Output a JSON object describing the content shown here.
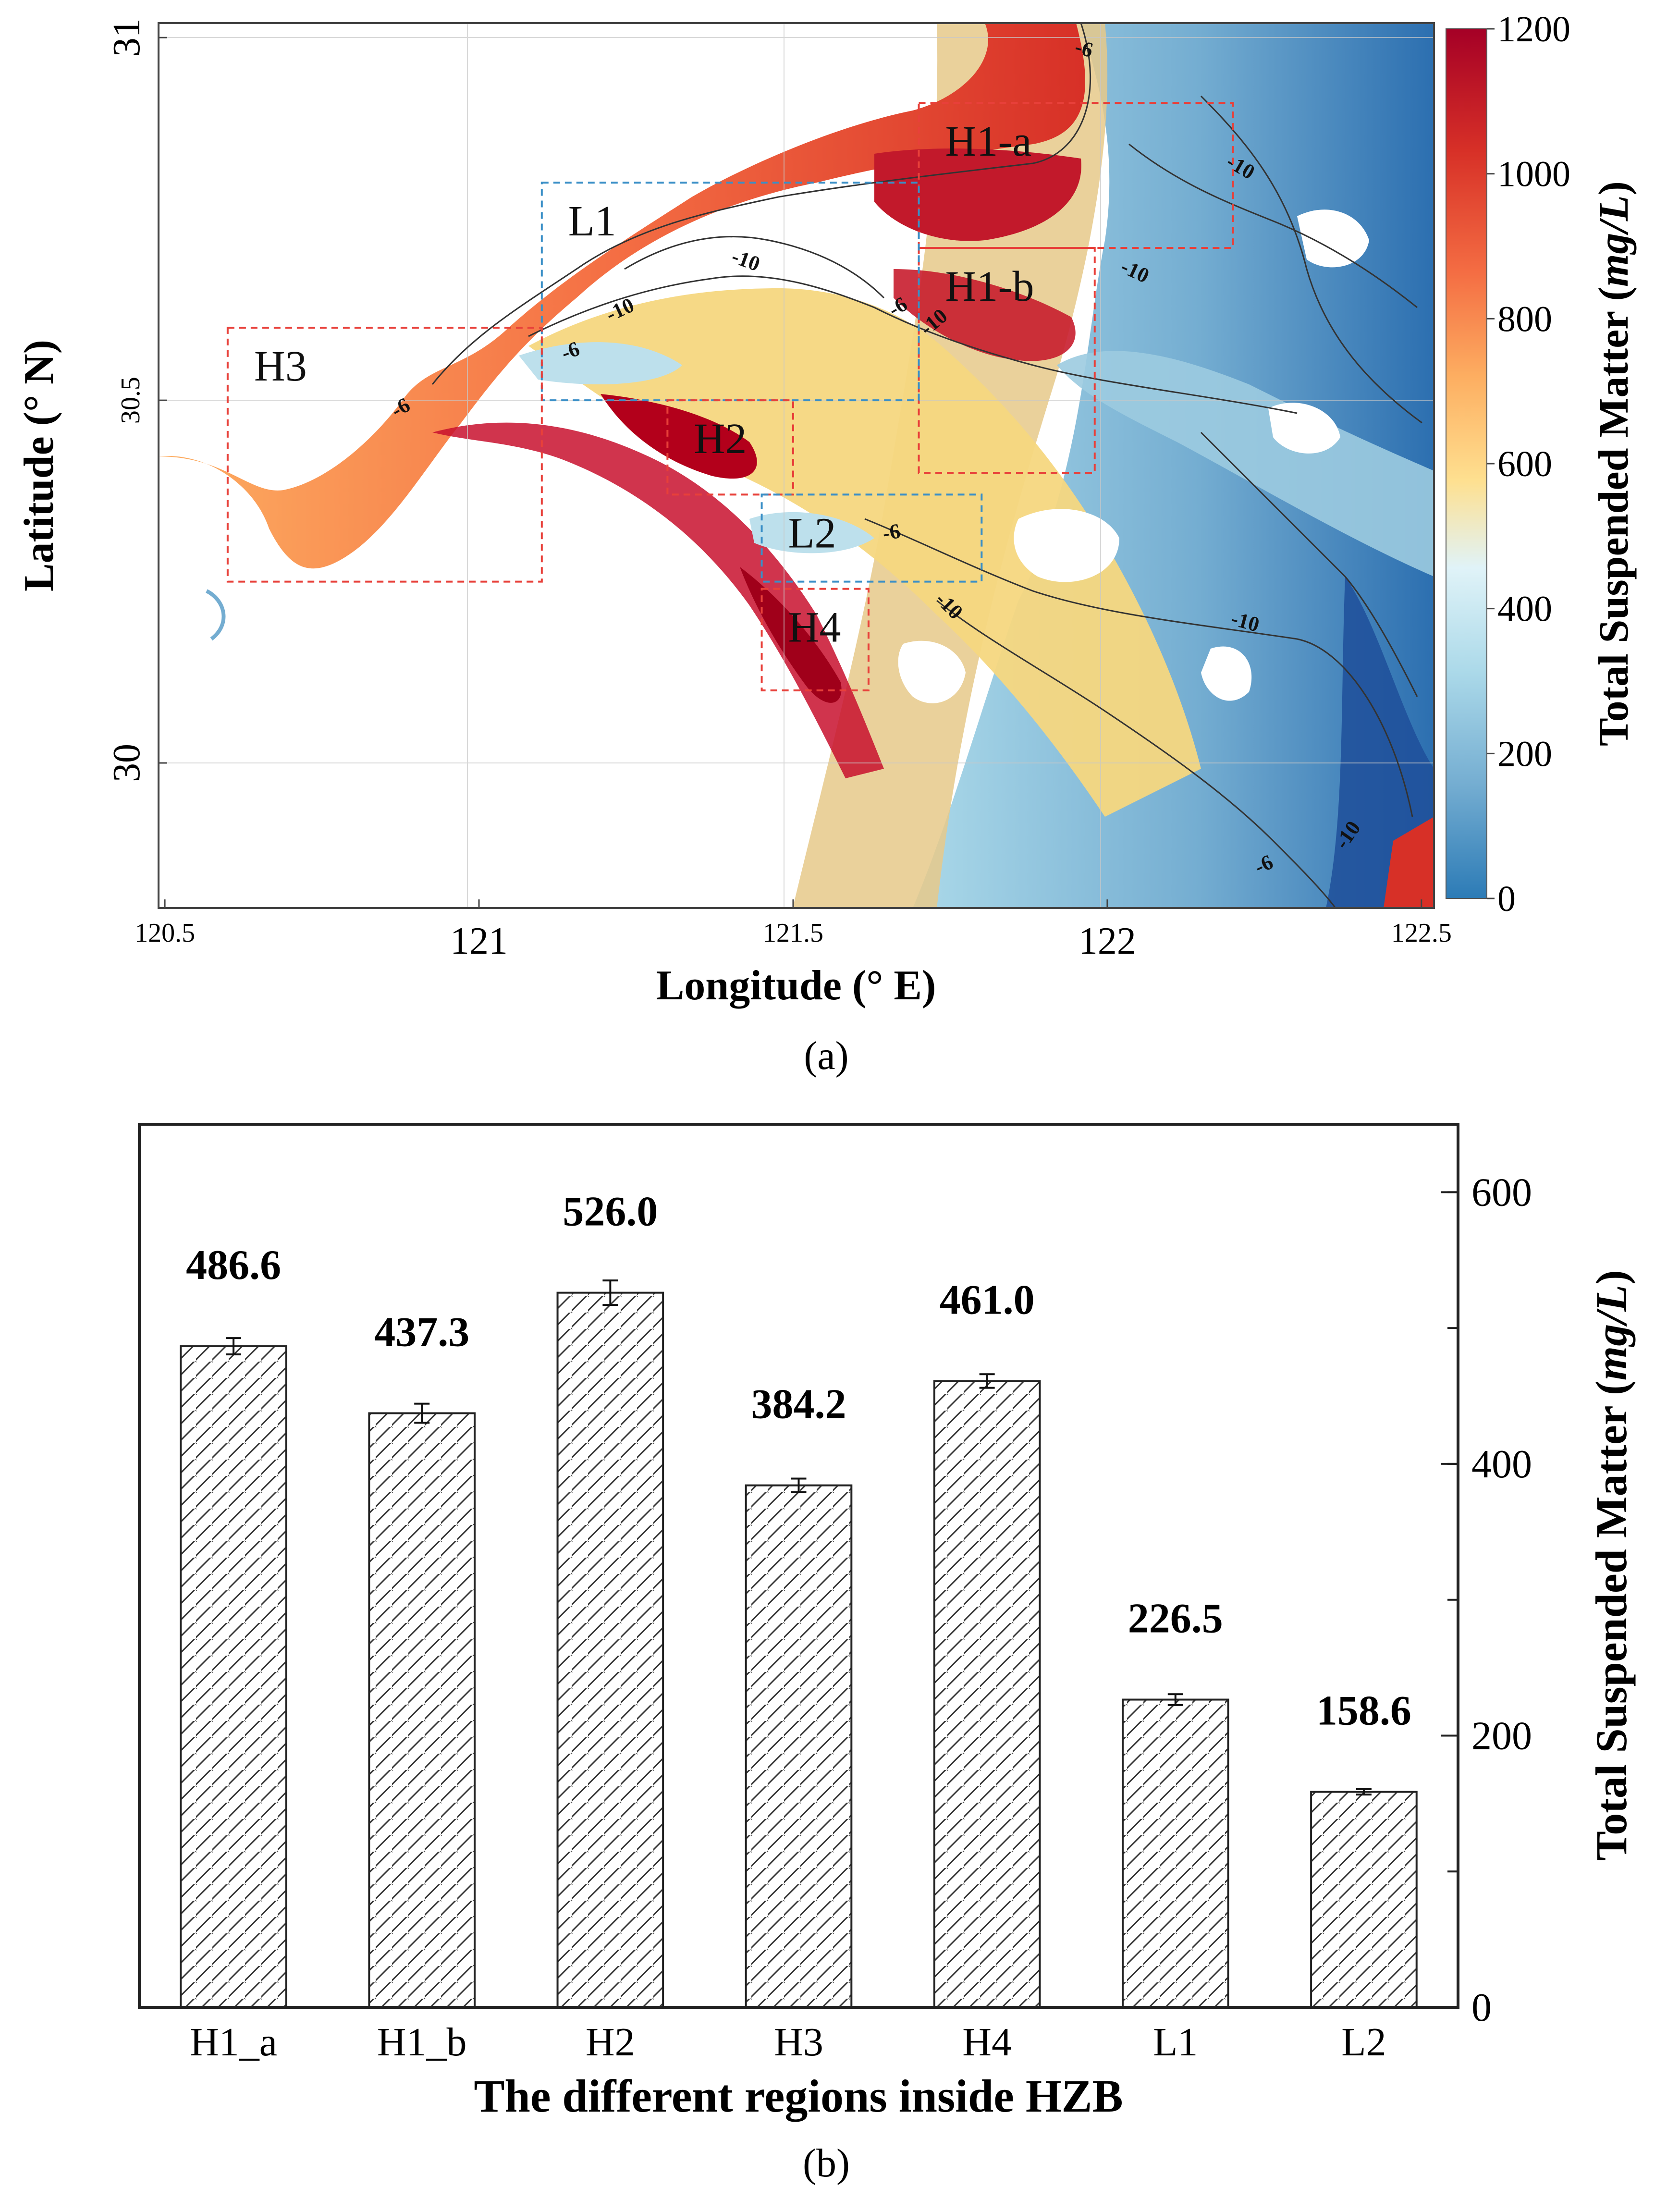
{
  "map_panel": {
    "label": "(a)",
    "xlabel": "Longitude (° E)",
    "ylabel": "Latitude (° N)",
    "x_ticks": [
      "120.5",
      "121",
      "121.5",
      "122",
      "122.5"
    ],
    "x_tick_values": [
      120.5,
      121,
      121.5,
      122,
      122.5
    ],
    "y_ticks": [
      "31",
      "30.5",
      "30"
    ],
    "y_tick_values": [
      31,
      30.5,
      30
    ],
    "xlim": [
      120.49,
      122.52
    ],
    "ylim": [
      29.8,
      31.02
    ],
    "colorbar": {
      "label": "Total Suspended Matter (mg/L)",
      "label_plain": "Total Suspended Matter (",
      "label_unit": "mg/L",
      "label_close": ")",
      "ticks": [
        "1200",
        "1000",
        "800",
        "600",
        "400",
        "200",
        "0"
      ],
      "range": [
        0,
        1200
      ],
      "colors": [
        "#2c7bb6",
        "#74add1",
        "#abd9e9",
        "#e0f3f8",
        "#fee090",
        "#fdae61",
        "#f46d43",
        "#d73027",
        "#a50026"
      ]
    },
    "regions": [
      {
        "name": "H1-a",
        "lon": [
          121.7,
          122.2
        ],
        "lat": [
          30.71,
          30.91
        ],
        "color": "#e8403a"
      },
      {
        "name": "H1-b",
        "lon": [
          121.7,
          121.98
        ],
        "lat": [
          30.4,
          30.71
        ],
        "color": "#e8403a"
      },
      {
        "name": "L1",
        "lon": [
          121.1,
          121.7
        ],
        "lat": [
          30.5,
          30.8
        ],
        "color": "#3a8fc7"
      },
      {
        "name": "H2",
        "lon": [
          121.3,
          121.5
        ],
        "lat": [
          30.37,
          30.5
        ],
        "color": "#e8403a"
      },
      {
        "name": "L2",
        "lon": [
          121.45,
          121.8
        ],
        "lat": [
          30.25,
          30.37
        ],
        "color": "#3a8fc7"
      },
      {
        "name": "H3",
        "lon": [
          120.6,
          121.1
        ],
        "lat": [
          30.25,
          30.6
        ],
        "color": "#e8403a"
      },
      {
        "name": "H4",
        "lon": [
          121.45,
          121.62
        ],
        "lat": [
          30.1,
          30.24
        ],
        "color": "#e8403a"
      }
    ],
    "contour_labels": [
      "-6",
      "-10",
      "-10",
      "-10",
      "-6",
      "-6",
      "-10",
      "-10",
      "-6",
      "-10",
      "-10",
      "-6",
      "-10",
      "-6"
    ]
  },
  "bar_panel": {
    "label": "(b)"
  },
  "chart_data": {
    "type": "bar",
    "title": "",
    "categories": [
      "H1_a",
      "H1_b",
      "H2",
      "H3",
      "H4",
      "L1",
      "L2"
    ],
    "values": [
      486.6,
      437.3,
      526.0,
      384.2,
      461.0,
      226.5,
      158.6
    ],
    "value_labels": [
      "486.6",
      "437.3",
      "526.0",
      "384.2",
      "461.0",
      "226.5",
      "158.6"
    ],
    "errors": [
      6,
      7,
      9,
      5,
      5,
      4,
      2
    ],
    "xlabel": "The different regions inside HZB",
    "ylabel": "Total Suspended Matter (mg/L)",
    "ylabel_plain": "Total Suspended Matter (",
    "ylabel_unit": "mg/L",
    "ylabel_close": ")",
    "ylim": [
      0,
      650
    ],
    "yticks": [
      0,
      200,
      400,
      600
    ],
    "ytick_labels": [
      "0",
      "200",
      "400",
      "600"
    ],
    "yaxis_side": "right",
    "hatch": "diagonal",
    "grid": false
  }
}
